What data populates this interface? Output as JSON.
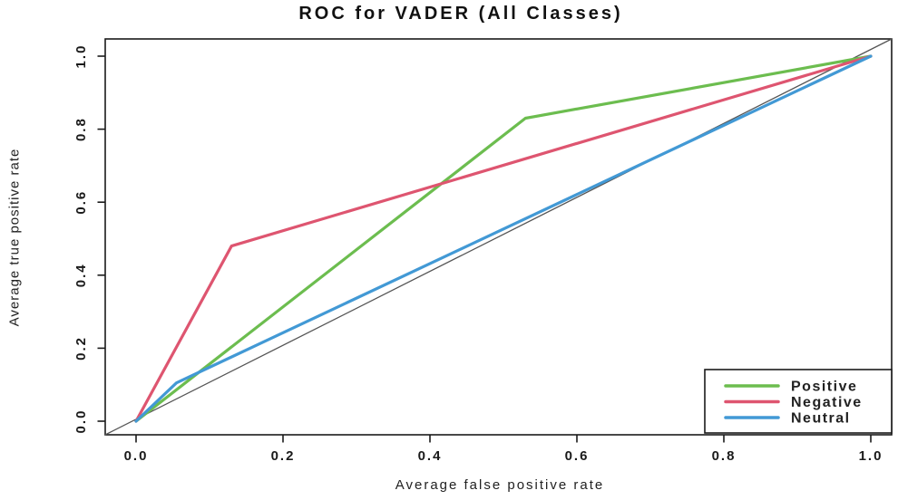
{
  "chart_data": {
    "type": "line",
    "title": "ROC for VADER (All Classes)",
    "xlabel": "Average false positive rate",
    "ylabel": "Average true positive rate",
    "xlim": [
      0,
      1
    ],
    "ylim": [
      0,
      1
    ],
    "grid": false,
    "x_tick_values": [
      0.0,
      0.2,
      0.4,
      0.6,
      0.8,
      1.0
    ],
    "x_tick_labels": [
      "0.0",
      "0.2",
      "0.4",
      "0.6",
      "0.8",
      "1.0"
    ],
    "y_tick_values": [
      0.0,
      0.2,
      0.4,
      0.6,
      0.8,
      1.0
    ],
    "y_tick_labels": [
      "0.0",
      "0.2",
      "0.4",
      "0.6",
      "0.8",
      "1.0"
    ],
    "series": [
      {
        "name": "Positive",
        "color": "#6cbd4f",
        "points": [
          [
            0,
            0
          ],
          [
            0.53,
            0.83
          ],
          [
            1,
            1
          ]
        ]
      },
      {
        "name": "Negative",
        "color": "#de5570",
        "points": [
          [
            0,
            0
          ],
          [
            0.13,
            0.48
          ],
          [
            1,
            1
          ]
        ]
      },
      {
        "name": "Neutral",
        "color": "#4299d5",
        "points": [
          [
            0,
            0
          ],
          [
            0.055,
            0.105
          ],
          [
            1,
            1
          ]
        ]
      }
    ],
    "reference_line": {
      "from": [
        0,
        0
      ],
      "to": [
        1,
        1
      ],
      "color": "#555555"
    },
    "legend": {
      "position": "bottomright",
      "entries": [
        "Positive",
        "Negative",
        "Neutral"
      ]
    },
    "frame_color": "#1a1a1a"
  }
}
